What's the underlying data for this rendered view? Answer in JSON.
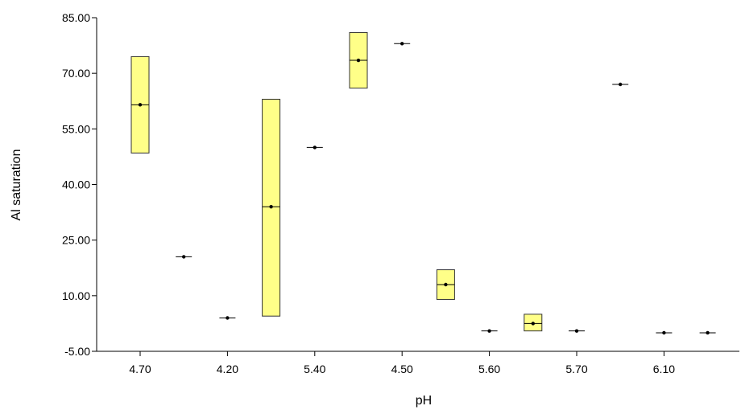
{
  "chart_data": {
    "type": "box",
    "xlabel": "pH",
    "ylabel": "Al saturation",
    "ylim": [
      -5,
      85
    ],
    "yticks": [
      "85.00",
      "70.00",
      "55.00",
      "40.00",
      "25.00",
      "10.00",
      "-5.00"
    ],
    "yticks_values": [
      85,
      70,
      55,
      40,
      25,
      10,
      -5
    ],
    "x_tick_labels": [
      "4.70",
      "4.20",
      "5.40",
      "4.50",
      "5.60",
      "5.70",
      "6.10"
    ],
    "categories": [
      "4.70",
      "",
      "4.20",
      "",
      "5.40",
      "",
      "4.50",
      "",
      "5.60",
      "",
      "5.70",
      "",
      "6.10",
      ""
    ],
    "boxes": [
      {
        "category": "4.70",
        "q1": 48.5,
        "median": 61.5,
        "q3": 74.5
      },
      {
        "category": "",
        "q1": 20.5,
        "median": 20.5,
        "q3": 20.5
      },
      {
        "category": "4.20",
        "q1": 4.0,
        "median": 4.0,
        "q3": 4.0
      },
      {
        "category": "",
        "q1": 4.5,
        "median": 34.0,
        "q3": 63.0
      },
      {
        "category": "5.40",
        "q1": 50.0,
        "median": 50.0,
        "q3": 50.0
      },
      {
        "category": "",
        "q1": 66.0,
        "median": 73.5,
        "q3": 81.0
      },
      {
        "category": "4.50",
        "q1": 78.0,
        "median": 78.0,
        "q3": 78.0
      },
      {
        "category": "",
        "q1": 9.0,
        "median": 13.0,
        "q3": 17.0
      },
      {
        "category": "5.60",
        "q1": 0.5,
        "median": 0.5,
        "q3": 0.5
      },
      {
        "category": "",
        "q1": 0.5,
        "median": 2.5,
        "q3": 5.0
      },
      {
        "category": "5.70",
        "q1": 0.5,
        "median": 0.5,
        "q3": 0.5
      },
      {
        "category": "",
        "q1": 67.0,
        "median": 67.0,
        "q3": 67.0
      },
      {
        "category": "6.10",
        "q1": 0.0,
        "median": 0.0,
        "q3": 0.0
      },
      {
        "category": "",
        "q1": 0.0,
        "median": 0.0,
        "q3": 0.0
      }
    ],
    "grid": false,
    "box_fill": "#ffff88",
    "box_stroke": "#333333"
  }
}
